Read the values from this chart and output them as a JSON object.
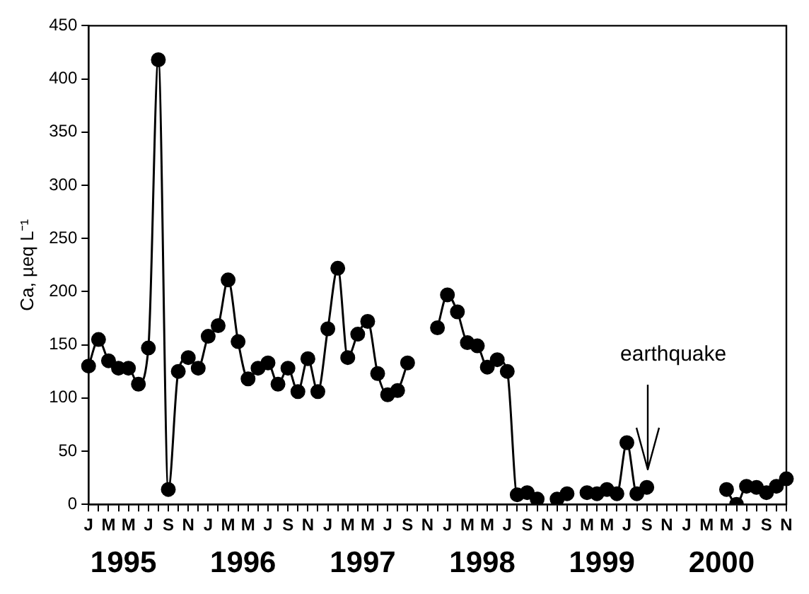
{
  "chart_data": {
    "type": "line",
    "ylabel": "Ca, µeq L⁻¹",
    "categories": [
      "J",
      null,
      "M",
      null,
      "M",
      null,
      "J",
      null,
      "S",
      null,
      "N",
      null,
      "J",
      null,
      "M",
      null,
      "M",
      null,
      "J",
      null,
      "S",
      null,
      "N",
      null,
      "J",
      null,
      "M",
      null,
      "M",
      null,
      "J",
      null,
      "S",
      null,
      "N",
      null,
      "J",
      null,
      "M",
      null,
      "M",
      null,
      "J",
      null,
      "S",
      null,
      "N",
      null,
      "J",
      null,
      "M",
      null,
      "M",
      null,
      "J",
      null,
      "S",
      null,
      "N",
      null,
      "J",
      null,
      "M",
      null,
      "M",
      null,
      "J",
      null,
      "S",
      null,
      "N"
    ],
    "series": [
      {
        "color": "#000000",
        "values": [
          130,
          155,
          135,
          128,
          128,
          113,
          147,
          418,
          14,
          125,
          138,
          128,
          158,
          168,
          211,
          153,
          118,
          128,
          133,
          113,
          128,
          106,
          137,
          106,
          165,
          222,
          138,
          160,
          172,
          123,
          103,
          107,
          133,
          null,
          null,
          166,
          197,
          181,
          152,
          149,
          129,
          136,
          125,
          9,
          11,
          5,
          null,
          5,
          10,
          null,
          11,
          10,
          14,
          10,
          58,
          10,
          16,
          null,
          null,
          null,
          null,
          null,
          null,
          null,
          14,
          0,
          17,
          16,
          11,
          17,
          24
        ]
      }
    ],
    "ylim": [
      0,
      450
    ],
    "yticks": [
      0,
      50,
      100,
      150,
      200,
      250,
      300,
      350,
      400,
      450
    ],
    "grid": false,
    "legend": false,
    "marker": "circle",
    "line_style": "solid",
    "annotations": [
      "earthquake",
      "1995",
      "1996",
      "1997",
      "1998",
      "1999",
      "2000"
    ]
  }
}
